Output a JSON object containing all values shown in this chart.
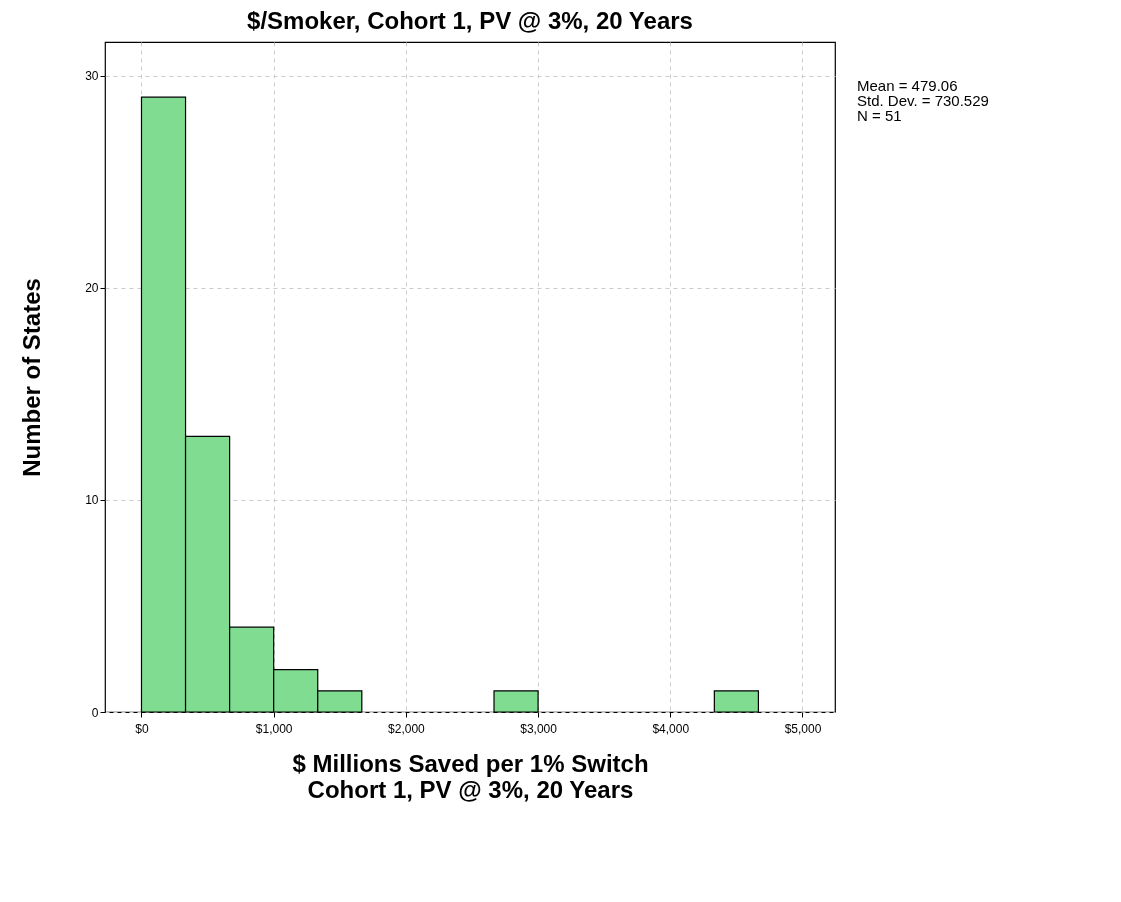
{
  "chart_data": {
    "type": "histogram",
    "title": "$/Smoker, Cohort 1, PV @ 3%, 20 Years",
    "xlabel": "$ Millions Saved per 1% Switch\nCohort 1, PV @ 3%, 20 Years",
    "ylabel": "Number of States",
    "bins": [
      0,
      333.3,
      666.7,
      1000,
      1333.3,
      1666.7,
      2000,
      2333.3,
      2666.7,
      3000,
      3333.3,
      3666.7,
      4000,
      4333.3,
      4666.7
    ],
    "values": [
      29,
      13,
      4,
      2,
      1,
      0,
      0,
      0,
      1,
      0,
      0,
      0,
      0,
      1
    ],
    "color": "#7fdc90",
    "xlim": [
      -276,
      5246
    ],
    "ylim": [
      0,
      31.6
    ],
    "xticks": [
      {
        "value": 0,
        "label": "$0"
      },
      {
        "value": 1000,
        "label": "$1,000"
      },
      {
        "value": 2000,
        "label": "$2,000"
      },
      {
        "value": 3000,
        "label": "$3,000"
      },
      {
        "value": 4000,
        "label": "$4,000"
      },
      {
        "value": 5000,
        "label": "$5,000"
      }
    ],
    "yticks": [
      0,
      10,
      20,
      30
    ],
    "grid": true,
    "annotations": [
      "Mean = 479.06",
      "Std. Dev. = 730.529",
      "N = 51"
    ]
  }
}
